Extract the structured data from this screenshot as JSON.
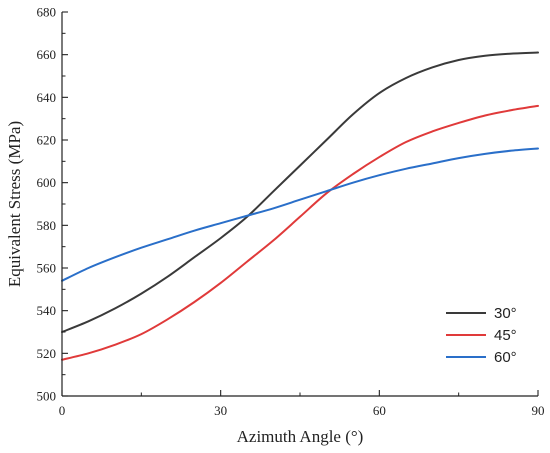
{
  "chart_data": {
    "type": "line",
    "title": "",
    "xlabel": "Azimuth Angle (°)",
    "ylabel": "Equivalent Stress (MPa)",
    "xlim": [
      0,
      90
    ],
    "ylim": [
      500,
      680
    ],
    "xticks": [
      0,
      30,
      60,
      90
    ],
    "yticks": [
      500,
      520,
      540,
      560,
      580,
      600,
      620,
      640,
      660,
      680
    ],
    "grid": false,
    "legend_position": "bottom-right",
    "series": [
      {
        "name": "30°",
        "color": "#3a3a3a",
        "x": [
          0,
          5,
          10,
          15,
          20,
          25,
          30,
          35,
          40,
          45,
          50,
          55,
          60,
          65,
          70,
          75,
          80,
          85,
          90
        ],
        "y": [
          530,
          535,
          541,
          548,
          556,
          565,
          574,
          584,
          596,
          608,
          620,
          632,
          642,
          649,
          654,
          657.5,
          659.5,
          660.5,
          661
        ]
      },
      {
        "name": "45°",
        "color": "#e03a3a",
        "x": [
          0,
          5,
          10,
          15,
          20,
          25,
          30,
          35,
          40,
          45,
          50,
          55,
          60,
          65,
          70,
          75,
          80,
          85,
          90
        ],
        "y": [
          517,
          520,
          524,
          529,
          536,
          544,
          553,
          563,
          573,
          584,
          595,
          604,
          612,
          619,
          624,
          628,
          631.5,
          634,
          636
        ]
      },
      {
        "name": "60°",
        "color": "#2a6fc9",
        "x": [
          0,
          5,
          10,
          15,
          20,
          25,
          30,
          35,
          40,
          45,
          50,
          55,
          60,
          65,
          70,
          75,
          80,
          85,
          90
        ],
        "y": [
          554,
          560,
          565,
          569.5,
          573.5,
          577.5,
          581,
          584.5,
          588,
          592,
          596,
          600,
          603.5,
          606.5,
          609,
          611.5,
          613.5,
          615,
          616
        ]
      }
    ]
  }
}
